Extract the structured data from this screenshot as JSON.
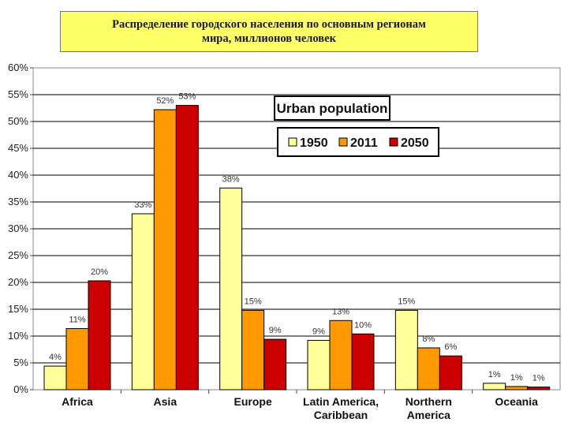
{
  "title_line1": "Распределение городского населения по основным регионам",
  "title_line2": "мира, миллионов человек",
  "chart_data": {
    "type": "bar",
    "categories": [
      [
        "Africa"
      ],
      [
        "Asia"
      ],
      [
        "Europe"
      ],
      [
        "Latin America,",
        "Caribbean"
      ],
      [
        "Northern",
        "America"
      ],
      [
        "Oceania"
      ]
    ],
    "series": [
      {
        "name": "1950",
        "color": "#ffff99",
        "values": [
          4.4,
          32.8,
          37.6,
          9.2,
          14.8,
          1.2
        ],
        "labels": [
          "4%",
          "33%",
          "38%",
          "9%",
          "15%",
          "1%"
        ]
      },
      {
        "name": "2011",
        "color": "#ff9900",
        "values": [
          11.4,
          52.2,
          14.8,
          12.9,
          7.8,
          0.6
        ],
        "labels": [
          "11%",
          "52%",
          "15%",
          "13%",
          "8%",
          "1%"
        ]
      },
      {
        "name": "2050",
        "color": "#cc0000",
        "values": [
          20.3,
          53.0,
          9.4,
          10.4,
          6.3,
          0.5
        ],
        "labels": [
          "20%",
          "53%",
          "9%",
          "10%",
          "6%",
          "1%"
        ]
      }
    ],
    "legend_title": "Urban population",
    "legend_position": "top-right",
    "ylim": [
      0,
      60
    ],
    "ytick_step": 5,
    "ytick_labels": [
      "0%",
      "5%",
      "10%",
      "15%",
      "20%",
      "25%",
      "30%",
      "35%",
      "40%",
      "45%",
      "50%",
      "55%",
      "60%"
    ],
    "grid": true
  }
}
